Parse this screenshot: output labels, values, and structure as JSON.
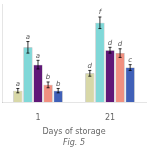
{
  "chart_data": {
    "type": "bar",
    "title": "Fig. 5",
    "xlabel": "Days of storage",
    "categories": [
      "1",
      "21"
    ],
    "series": [
      {
        "color": "#d8d8a8",
        "values": [
          8,
          20
        ],
        "errors": [
          1.5,
          2
        ],
        "annotations": [
          "a",
          "d"
        ]
      },
      {
        "color": "#80d8d8",
        "values": [
          38,
          55
        ],
        "errors": [
          4,
          4
        ],
        "annotations": [
          "a",
          "f"
        ]
      },
      {
        "color": "#601878",
        "values": [
          26,
          36
        ],
        "errors": [
          3,
          2
        ],
        "annotations": [
          "a",
          "d"
        ]
      },
      {
        "color": "#f09080",
        "values": [
          12,
          34
        ],
        "errors": [
          2,
          3
        ],
        "annotations": [
          "b",
          "d"
        ]
      },
      {
        "color": "#4060b8",
        "values": [
          8,
          24
        ],
        "errors": [
          1.5,
          2
        ],
        "annotations": [
          "b",
          "c"
        ]
      }
    ],
    "ylim": [
      0,
      68
    ],
    "grid": false,
    "tick_labels": "x"
  }
}
